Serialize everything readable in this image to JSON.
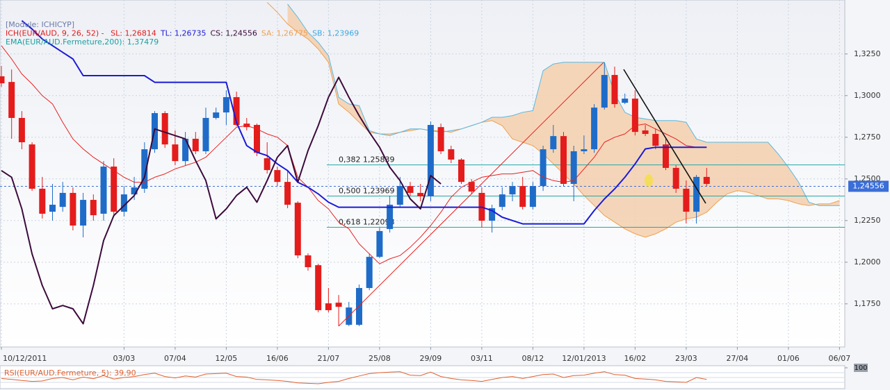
{
  "legend_lines": [
    [
      {
        "text": "[Module: ICHICYP]",
        "color": "#6b7aa8"
      }
    ],
    [
      {
        "text": "ICH(EUR/AUD, 9, 26, 52) - ",
        "color": "#e01c1c"
      },
      {
        "text": "SL: 1,26814",
        "color": "#e01c1c"
      },
      {
        "text": "TL: 1,26735",
        "color": "#1a1ad8"
      },
      {
        "text": "CS: 1,24556",
        "color": "#3c0a3c"
      },
      {
        "text": "SA: 1,26775",
        "color": "#f0a050"
      },
      {
        "text": "SB: 1,23969",
        "color": "#40a8e0"
      }
    ],
    [
      {
        "text": "EMA(EUR/AUD.Fermeture,200): 1,37479",
        "color": "#1aa0a0"
      }
    ]
  ],
  "chart_data": [
    {
      "type": "candlestick",
      "categories": [
        "10/12/2011",
        null,
        null,
        null,
        null,
        null,
        null,
        null,
        null,
        null,
        null,
        null,
        "03/03",
        null,
        null,
        null,
        null,
        "07/04",
        null,
        null,
        null,
        null,
        "12/05",
        null,
        null,
        null,
        null,
        "16/06",
        null,
        null,
        null,
        null,
        "21/07",
        null,
        null,
        null,
        null,
        "25/08",
        null,
        null,
        null,
        null,
        "29/09",
        null,
        null,
        null,
        null,
        "03/11",
        null,
        null,
        null,
        null,
        "08/12",
        null,
        null,
        null,
        null,
        "12/01/2013",
        null,
        null,
        null,
        null,
        "16/02",
        null,
        null,
        null,
        null,
        "23/03",
        null,
        null,
        null,
        null,
        "27/04",
        null,
        null,
        null,
        null,
        "01/06",
        null,
        null,
        null,
        null,
        "06/07"
      ],
      "open": [
        1.3116,
        1.3082,
        1.2866,
        1.2707,
        1.2441,
        1.2303,
        1.2332,
        1.2416,
        1.222,
        1.2374,
        1.2291,
        1.2574,
        1.2303,
        1.2407,
        1.2441,
        1.2678,
        1.2895,
        1.2707,
        1.2607,
        1.2741,
        1.2666,
        1.2866,
        1.2899,
        1.2991,
        1.2832,
        1.2824,
        1.2624,
        1.2553,
        1.2482,
        1.2357,
        1.2041,
        1.1982,
        1.1753,
        1.1757,
        1.1624,
        1.1624,
        1.1845,
        1.2032,
        1.2199,
        1.2345,
        1.2457,
        1.2416,
        1.2395,
        1.2811,
        1.2678,
        1.2616,
        1.2482,
        1.2416,
        1.2249,
        1.2332,
        1.2407,
        1.2457,
        1.2332,
        1.2457,
        1.2678,
        1.2757,
        1.247,
        1.2666,
        1.2678,
        1.2928,
        1.3124,
        1.2957,
        1.2982,
        1.2791,
        1.277,
        1.2707,
        1.2566,
        1.2441,
        1.2303,
        1.2512,
        null,
        null,
        null,
        null,
        null,
        null,
        null,
        null,
        null,
        null,
        null,
        null,
        null
      ],
      "high": [
        1.3178,
        1.3157,
        1.2907,
        1.272,
        1.2512,
        1.247,
        1.2482,
        1.2449,
        1.2416,
        1.2407,
        1.2607,
        1.2624,
        1.2457,
        1.2512,
        1.272,
        1.2907,
        1.2907,
        1.2791,
        1.2782,
        1.2782,
        1.2928,
        1.2928,
        1.3032,
        1.3024,
        1.2866,
        1.2832,
        1.272,
        1.2574,
        1.2553,
        1.2366,
        1.2053,
        1.1991,
        1.1845,
        1.1803,
        1.1762,
        1.1866,
        1.2053,
        1.2207,
        1.2399,
        1.2512,
        1.2482,
        1.247,
        1.2845,
        1.2832,
        1.2699,
        1.2624,
        1.2499,
        1.2449,
        1.2345,
        1.2449,
        1.2482,
        1.2512,
        1.2482,
        1.2699,
        1.2824,
        1.2782,
        1.2699,
        1.2761,
        1.2949,
        1.3199,
        1.3174,
        1.3012,
        1.3032,
        1.2824,
        1.2803,
        1.2741,
        1.2582,
        1.2491,
        1.2524,
        1.2566,
        null,
        null,
        null,
        null,
        null,
        null,
        null,
        null,
        null,
        null,
        null,
        null,
        null
      ],
      "low": [
        1.3053,
        1.2741,
        1.2678,
        1.2428,
        1.2262,
        1.2249,
        1.2303,
        1.2191,
        1.2149,
        1.2249,
        1.2249,
        1.2274,
        1.2274,
        1.2374,
        1.2416,
        1.2657,
        1.2686,
        1.2582,
        1.2582,
        1.2649,
        1.2649,
        1.2857,
        1.2824,
        1.2816,
        1.2791,
        1.2637,
        1.2532,
        1.2457,
        1.2324,
        1.2024,
        1.1949,
        1.1699,
        1.1699,
        1.1616,
        1.1616,
        1.1616,
        1.1832,
        1.2024,
        1.2178,
        1.2332,
        1.2399,
        1.2366,
        1.2366,
        1.2649,
        1.2595,
        1.247,
        1.2407,
        1.2207,
        1.2178,
        1.2312,
        1.2366,
        1.2316,
        1.2316,
        1.2428,
        1.2657,
        1.2457,
        1.2366,
        1.2649,
        1.2657,
        1.2916,
        1.2928,
        1.2949,
        1.2761,
        1.2757,
        1.2678,
        1.2553,
        1.2416,
        1.2232,
        1.2232,
        1.2457,
        null,
        null,
        null,
        null,
        null,
        null,
        null,
        null,
        null,
        null,
        null,
        null,
        null
      ],
      "close": [
        1.3074,
        1.2866,
        1.272,
        1.2441,
        1.2291,
        1.2345,
        1.2416,
        1.222,
        1.2374,
        1.2282,
        1.2574,
        1.2303,
        1.2407,
        1.2449,
        1.2678,
        1.2895,
        1.2707,
        1.2607,
        1.2741,
        1.2666,
        1.2866,
        1.2899,
        1.2991,
        1.2824,
        1.2811,
        1.2657,
        1.2553,
        1.2482,
        1.2345,
        1.2041,
        1.197,
        1.1712,
        1.1712,
        1.1732,
        1.1728,
        1.1845,
        1.2032,
        1.2187,
        1.2345,
        1.2457,
        1.2416,
        1.2395,
        1.2824,
        1.2666,
        1.2616,
        1.2482,
        1.2424,
        1.2249,
        1.2324,
        1.2407,
        1.2457,
        1.2332,
        1.2457,
        1.2678,
        1.2757,
        1.247,
        1.2666,
        1.2678,
        1.2928,
        1.3124,
        1.2949,
        1.2982,
        1.2782,
        1.277,
        1.2699,
        1.2566,
        1.2441,
        1.2303,
        1.2512,
        1.247,
        null,
        null,
        null,
        null,
        null,
        null,
        null,
        null,
        null,
        null,
        null,
        null,
        null
      ],
      "up_color": "#1f6cc8",
      "down_color": "#e41c1c",
      "tenkan": {
        "color": "#e82020",
        "values": [
          1.33,
          1.322,
          1.313,
          1.307,
          1.3,
          1.295,
          1.284,
          1.274,
          1.268,
          1.263,
          1.259,
          1.255,
          1.251,
          1.248,
          1.248,
          1.251,
          1.253,
          1.256,
          1.258,
          1.26,
          1.263,
          1.269,
          1.275,
          1.281,
          1.282,
          1.28,
          1.277,
          1.275,
          1.27,
          1.251,
          1.245,
          1.237,
          1.232,
          1.224,
          1.22,
          1.211,
          1.205,
          1.199,
          1.202,
          1.204,
          1.209,
          1.215,
          1.222,
          1.23,
          1.239,
          1.245,
          1.248,
          1.251,
          1.252,
          1.253,
          1.253,
          1.254,
          1.255,
          1.251,
          1.249,
          1.248,
          1.249,
          1.256,
          1.263,
          1.272,
          1.275,
          1.277,
          1.282,
          1.283,
          1.28,
          1.277,
          1.274,
          1.27,
          1.269,
          1.269,
          null,
          null,
          null,
          null,
          null,
          null,
          null,
          null,
          null,
          null,
          null,
          null,
          null
        ]
      },
      "kijun": {
        "color": "#1a1ad8",
        "values": [
          null,
          null,
          1.345,
          1.34,
          1.334,
          1.33,
          1.326,
          1.322,
          1.312,
          1.312,
          1.312,
          1.312,
          1.312,
          1.312,
          1.312,
          1.308,
          1.308,
          1.308,
          1.308,
          1.308,
          1.308,
          1.308,
          1.308,
          1.284,
          1.27,
          1.266,
          1.264,
          1.259,
          1.255,
          1.248,
          1.245,
          1.241,
          1.236,
          1.233,
          1.233,
          1.233,
          1.233,
          1.233,
          1.233,
          1.233,
          1.233,
          1.233,
          1.233,
          1.233,
          1.233,
          1.233,
          1.233,
          1.233,
          1.231,
          1.227,
          1.225,
          1.223,
          1.223,
          1.223,
          1.223,
          1.223,
          1.223,
          1.223,
          1.231,
          1.238,
          1.244,
          1.251,
          1.259,
          1.268,
          1.269,
          1.269,
          1.269,
          1.269,
          1.269,
          1.269,
          null,
          null,
          null,
          null,
          null,
          null,
          null,
          null,
          null,
          null,
          null,
          null,
          null
        ]
      },
      "chikou": {
        "color": "#3c0a3c",
        "values": [
          1.255,
          1.251,
          1.232,
          1.205,
          1.186,
          1.172,
          1.174,
          1.172,
          1.163,
          1.186,
          1.213,
          1.228,
          1.234,
          1.24,
          1.251,
          1.28,
          1.278,
          1.276,
          1.274,
          1.261,
          1.249,
          1.226,
          1.232,
          1.24,
          1.245,
          1.236,
          1.249,
          1.263,
          1.27,
          1.248,
          1.267,
          1.282,
          1.299,
          1.311,
          1.299,
          1.288,
          1.278,
          1.269,
          1.257,
          1.249,
          1.238,
          1.232,
          1.252,
          1.247,
          null,
          null,
          null,
          null,
          null,
          null,
          null,
          null,
          null,
          null,
          null,
          null,
          null,
          null,
          null,
          null,
          null,
          null,
          null,
          null,
          null,
          null,
          null,
          null,
          null,
          null,
          null,
          null,
          null,
          null,
          null,
          null,
          null,
          null,
          null,
          null,
          null,
          null,
          null
        ]
      },
      "senkou_a": {
        "color": "#f0a050",
        "values": [
          null,
          null,
          null,
          null,
          null,
          null,
          null,
          null,
          null,
          null,
          null,
          null,
          null,
          null,
          null,
          null,
          null,
          null,
          null,
          null,
          null,
          null,
          null,
          null,
          null,
          null,
          1.356,
          1.35,
          1.343,
          1.338,
          1.334,
          1.328,
          1.32,
          1.295,
          1.29,
          1.284,
          1.278,
          1.277,
          1.277,
          1.278,
          1.279,
          1.28,
          1.279,
          1.279,
          1.278,
          1.28,
          1.282,
          1.284,
          1.285,
          1.282,
          1.274,
          1.272,
          1.27,
          1.265,
          1.259,
          1.253,
          1.247,
          1.24,
          1.234,
          1.228,
          1.224,
          1.22,
          1.217,
          1.215,
          1.217,
          1.22,
          1.224,
          1.226,
          1.227,
          1.23,
          1.236,
          1.241,
          1.243,
          1.242,
          1.24,
          1.238,
          1.238,
          1.237,
          1.235,
          1.234,
          1.235,
          1.235,
          1.237
        ]
      },
      "senkou_b": {
        "color": "#58b8e0",
        "values": [
          null,
          null,
          null,
          null,
          null,
          null,
          null,
          null,
          null,
          null,
          null,
          null,
          null,
          null,
          null,
          null,
          null,
          null,
          null,
          null,
          null,
          null,
          null,
          null,
          null,
          null,
          null,
          null,
          1.355,
          1.347,
          1.338,
          1.332,
          1.324,
          1.299,
          1.295,
          1.294,
          1.279,
          1.277,
          1.276,
          1.278,
          1.28,
          1.28,
          1.279,
          1.278,
          1.279,
          1.28,
          1.282,
          1.284,
          1.287,
          1.287,
          1.288,
          1.29,
          1.291,
          1.315,
          1.319,
          1.32,
          1.32,
          1.32,
          1.32,
          1.32,
          1.301,
          1.29,
          1.287,
          1.286,
          1.285,
          1.285,
          1.285,
          1.284,
          1.274,
          1.272,
          1.272,
          1.272,
          1.272,
          1.272,
          1.272,
          1.272,
          1.265,
          1.257,
          1.248,
          1.236,
          1.234,
          1.234,
          1.234
        ]
      },
      "cloud_color": "#f5cfad",
      "levels": [
        {
          "value": 1.25839,
          "label": "0,382 1,25839"
        },
        {
          "value": 1.23969,
          "label": "0,500 1,23969"
        },
        {
          "value": 1.22098,
          "label": "0,618 1,22098"
        }
      ],
      "level_color": "#20a8a8",
      "last_price": {
        "value": 1.24556,
        "label": "1,24556"
      },
      "last_color": "#3a6ed8",
      "ylim": [
        1.1491,
        1.3574
      ],
      "yticks": [
        {
          "value": 1.175,
          "label": "1,1750"
        },
        {
          "value": 1.2,
          "label": "1,2000"
        },
        {
          "value": 1.225,
          "label": "1,2250"
        },
        {
          "value": 1.25,
          "label": "1,2500"
        },
        {
          "value": 1.275,
          "label": "1,2750"
        },
        {
          "value": 1.3,
          "label": "1,3000"
        },
        {
          "value": 1.325,
          "label": "1,3250"
        }
      ],
      "grid": true
    },
    {
      "type": "line",
      "title": "RSI(EUR/AUD.Fermeture, 5): 39,90",
      "color": "#e06030",
      "values": [
        45,
        40,
        35,
        30,
        32,
        45,
        50,
        38,
        52,
        44,
        60,
        42,
        50,
        55,
        65,
        72,
        55,
        48,
        58,
        52,
        68,
        70,
        72,
        55,
        52,
        40,
        38,
        35,
        30,
        22,
        20,
        18,
        25,
        30,
        45,
        58,
        70,
        75,
        78,
        80,
        62,
        60,
        78,
        55,
        45,
        38,
        35,
        30,
        40,
        50,
        55,
        45,
        55,
        65,
        68,
        50,
        60,
        62,
        72,
        80,
        65,
        62,
        45,
        42,
        38,
        30,
        28,
        25,
        50,
        40
      ],
      "ylim": [
        0,
        100
      ],
      "yticks": [
        100
      ]
    }
  ]
}
